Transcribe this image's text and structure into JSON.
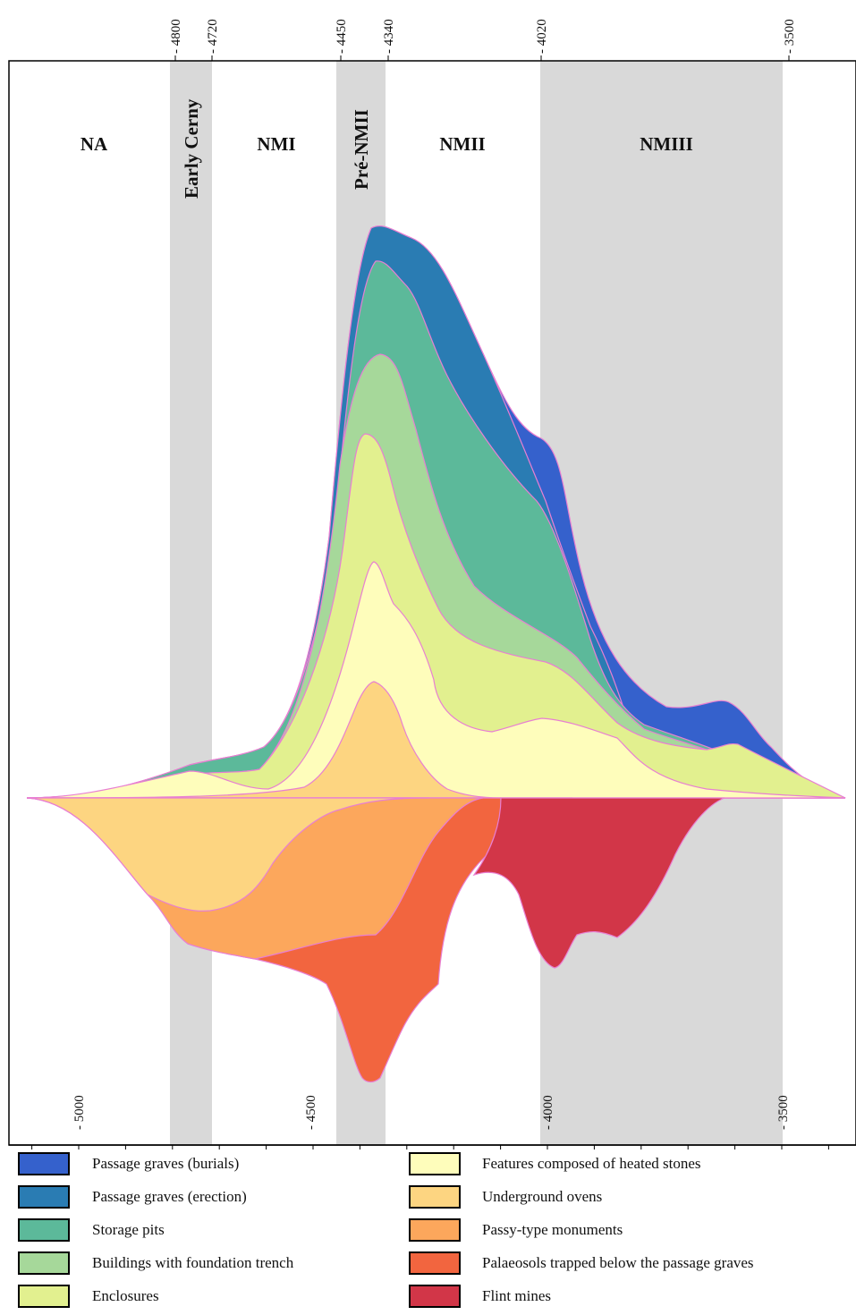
{
  "chart_data": {
    "type": "area",
    "chart_subtype": "streamgraph",
    "axis": {
      "bottom_ticks": [
        {
          "label": "- 5000",
          "value": -5000
        },
        {
          "label": "- 4500",
          "value": -4500
        },
        {
          "label": "- 4000",
          "value": -4000
        },
        {
          "label": "- 3500",
          "value": -3500
        }
      ],
      "xlim": [
        -5100,
        -3350
      ]
    },
    "period_bounds": [
      {
        "label": "- 4800",
        "value": -4800
      },
      {
        "label": "- 4720",
        "value": -4720
      },
      {
        "label": "- 4450",
        "value": -4450
      },
      {
        "label": "- 4340",
        "value": -4340
      },
      {
        "label": "- 4020",
        "value": -4020
      },
      {
        "label": "- 3500",
        "value": -3500
      }
    ],
    "periods": [
      {
        "label": "NA",
        "start": -5100,
        "end": -4800,
        "shaded": false,
        "vertical": false
      },
      {
        "label": "Early Cerny",
        "start": -4800,
        "end": -4720,
        "shaded": true,
        "vertical": true
      },
      {
        "label": "NMI",
        "start": -4720,
        "end": -4450,
        "shaded": false,
        "vertical": false
      },
      {
        "label": "Pré-NMII",
        "start": -4450,
        "end": -4340,
        "shaded": true,
        "vertical": true
      },
      {
        "label": "NMII",
        "start": -4340,
        "end": -4020,
        "shaded": false,
        "vertical": false
      },
      {
        "label": "NMIII",
        "start": -4020,
        "end": -3500,
        "shaded": true,
        "vertical": false
      }
    ],
    "upper_series": [
      {
        "name": "Passage graves (burials)",
        "color": "#3561cc"
      },
      {
        "name": "Passage graves (erection)",
        "color": "#2a7cb3"
      },
      {
        "name": "Storage pits",
        "color": "#5cb99a"
      },
      {
        "name": "Buildings with foundation trench",
        "color": "#a6d89a"
      },
      {
        "name": "Enclosures",
        "color": "#e2f08f"
      },
      {
        "name": "Features composed of heated stones",
        "color": "#fefdbb"
      },
      {
        "name": "Underground ovens",
        "color": "#fdd581"
      }
    ],
    "lower_series": [
      {
        "name": "Underground ovens",
        "color": "#fdd581"
      },
      {
        "name": "Passy-type monuments",
        "color": "#fca75c"
      },
      {
        "name": "Palaeosols trapped below the passage graves",
        "color": "#f2653f"
      },
      {
        "name": "Flint mines",
        "color": "#d23648"
      }
    ],
    "legend_position": "bottom"
  },
  "legend": {
    "left": [
      {
        "label": "Passage graves (burials)",
        "color": "#3561cc"
      },
      {
        "label": "Passage graves (erection)",
        "color": "#2a7cb3"
      },
      {
        "label": "Storage pits",
        "color": "#5cb99a"
      },
      {
        "label": "Buildings with foundation trench",
        "color": "#a6d89a"
      },
      {
        "label": "Enclosures",
        "color": "#e2f08f"
      }
    ],
    "right": [
      {
        "label": "Features composed of heated stones",
        "color": "#fefdbb"
      },
      {
        "label": "Underground ovens",
        "color": "#fdd581"
      },
      {
        "label": "Passy-type monuments",
        "color": "#fca75c"
      },
      {
        "label": "Palaeosols trapped below the passage graves",
        "color": "#f2653f"
      },
      {
        "label": "Flint mines",
        "color": "#d23648"
      }
    ]
  }
}
